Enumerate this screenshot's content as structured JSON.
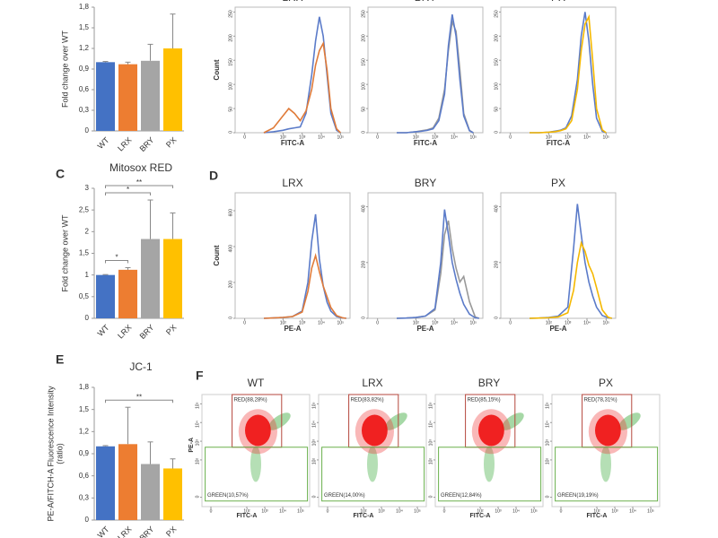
{
  "chart_data": [
    {
      "type": "bar",
      "ylabel": "Fold change over WT",
      "categories": [
        "WT",
        "LRX",
        "BRY",
        "PX"
      ],
      "values": [
        1.0,
        0.97,
        1.02,
        1.2
      ],
      "errors": [
        0.01,
        0.03,
        0.24,
        0.5
      ],
      "colors": [
        "#4472c4",
        "#ed7d31",
        "#a5a5a5",
        "#ffc000"
      ],
      "ylim": [
        0,
        1.8
      ],
      "yticks": [
        0,
        {
          "value": 0.3,
          "label": "0,3"
        },
        {
          "value": 0.6,
          "label": "0,6"
        },
        {
          "value": 0.9,
          "label": "0,9"
        },
        {
          "value": 1.2,
          "label": "1,2"
        },
        {
          "value": 1.5,
          "label": "1,5"
        },
        {
          "value": 1.8,
          "label": "1,8"
        }
      ]
    },
    {
      "type": "line",
      "title": "LRX",
      "xlabel": "FITC-A",
      "ylabel": "Count",
      "x": [
        1,
        1.5,
        2,
        2.3,
        2.6,
        2.9,
        3.2,
        3.5,
        3.7,
        3.9,
        4.1,
        4.3,
        4.5,
        4.8,
        5
      ],
      "series": [
        {
          "color": "#5b7bc9",
          "values": [
            0,
            2,
            5,
            8,
            10,
            12,
            40,
            120,
            190,
            240,
            200,
            120,
            40,
            5,
            0
          ]
        },
        {
          "color": "#e07b39",
          "values": [
            0,
            10,
            35,
            50,
            40,
            25,
            45,
            90,
            140,
            170,
            185,
            130,
            50,
            8,
            0
          ]
        }
      ],
      "xlim": [
        -0.5,
        5.5
      ],
      "xticks": [
        0,
        {
          "value": 2,
          "label": "10²"
        },
        {
          "value": 3,
          "label": "10³"
        },
        {
          "value": 4,
          "label": "10⁴"
        },
        {
          "value": 5,
          "label": "10⁵"
        }
      ],
      "ylim": [
        0,
        260
      ],
      "yticks": [
        0,
        50,
        100,
        150,
        200,
        250
      ]
    },
    {
      "type": "line",
      "title": "BRY",
      "xlabel": "FITC-A",
      "x": [
        1,
        1.5,
        2,
        2.3,
        2.6,
        2.9,
        3.2,
        3.5,
        3.7,
        3.9,
        4.1,
        4.3,
        4.5,
        4.8,
        5
      ],
      "series": [
        {
          "color": "#999999",
          "values": [
            0,
            0,
            2,
            4,
            6,
            10,
            30,
            90,
            170,
            230,
            210,
            130,
            40,
            5,
            0
          ]
        },
        {
          "color": "#5b7bc9",
          "values": [
            0,
            0,
            2,
            3,
            5,
            8,
            25,
            80,
            180,
            245,
            200,
            110,
            35,
            4,
            0
          ]
        }
      ],
      "xlim": [
        -0.5,
        5.5
      ],
      "xticks": [
        0,
        {
          "value": 2,
          "label": "10²"
        },
        {
          "value": 3,
          "label": "10³"
        },
        {
          "value": 4,
          "label": "10⁴"
        },
        {
          "value": 5,
          "label": "10⁵"
        }
      ],
      "ylim": [
        0,
        260
      ],
      "yticks": [
        0,
        50,
        100,
        150,
        200,
        250
      ]
    },
    {
      "type": "line",
      "title": "PX",
      "xlabel": "FITC-A",
      "x": [
        1,
        1.5,
        2,
        2.3,
        2.6,
        2.9,
        3.2,
        3.5,
        3.7,
        3.9,
        4.1,
        4.3,
        4.5,
        4.8,
        5
      ],
      "series": [
        {
          "color": "#5b7bc9",
          "values": [
            0,
            0,
            1,
            3,
            5,
            10,
            35,
            110,
            200,
            250,
            190,
            100,
            30,
            3,
            0
          ]
        },
        {
          "color": "#f5b800",
          "values": [
            0,
            0,
            1,
            2,
            4,
            8,
            25,
            90,
            170,
            225,
            240,
            150,
            50,
            6,
            0
          ]
        }
      ],
      "xlim": [
        -0.5,
        5.5
      ],
      "xticks": [
        0,
        {
          "value": 2,
          "label": "10²"
        },
        {
          "value": 3,
          "label": "10³"
        },
        {
          "value": 4,
          "label": "10⁴"
        },
        {
          "value": 5,
          "label": "10⁵"
        }
      ],
      "ylim": [
        0,
        260
      ],
      "yticks": [
        0,
        50,
        100,
        150,
        200,
        250
      ]
    },
    {
      "type": "bar",
      "panel": "C",
      "title": "Mitosox RED",
      "ylabel": "Fold change over WT",
      "categories": [
        "WT",
        "LRX",
        "BRY",
        "PX"
      ],
      "values": [
        1.0,
        1.12,
        1.83,
        1.83
      ],
      "errors": [
        0.01,
        0.05,
        0.9,
        0.6
      ],
      "colors": [
        "#4472c4",
        "#ed7d31",
        "#a5a5a5",
        "#ffc000"
      ],
      "ylim": [
        0,
        3
      ],
      "yticks": [
        0,
        {
          "value": 0.5,
          "label": "0,5"
        },
        1,
        {
          "value": 1.5,
          "label": "1,5"
        },
        2,
        {
          "value": 2.5,
          "label": "2,5"
        },
        3
      ],
      "significance": [
        {
          "label": "*",
          "between": [
            0,
            1
          ]
        },
        {
          "label": "*",
          "between": [
            0,
            2
          ]
        },
        {
          "label": "**",
          "between": [
            0,
            3
          ]
        }
      ]
    },
    {
      "type": "line",
      "panel": "D",
      "title": "LRX",
      "xlabel": "PE-A",
      "ylabel": "Count",
      "x": [
        1,
        1.5,
        2,
        2.5,
        3,
        3.3,
        3.5,
        3.7,
        3.9,
        4.1,
        4.3,
        4.5,
        4.8,
        5.1,
        5.3
      ],
      "series": [
        {
          "color": "#5b7bc9",
          "values": [
            0,
            2,
            5,
            10,
            40,
            200,
            430,
            580,
            330,
            180,
            90,
            40,
            10,
            2,
            0
          ]
        },
        {
          "color": "#e07b39",
          "values": [
            0,
            2,
            5,
            10,
            35,
            150,
            280,
            350,
            260,
            180,
            120,
            60,
            15,
            3,
            0
          ]
        }
      ],
      "xlim": [
        -0.5,
        5.5
      ],
      "xticks": [
        0,
        {
          "value": 2,
          "label": "10²"
        },
        {
          "value": 3,
          "label": "10³"
        },
        {
          "value": 4,
          "label": "10⁴"
        },
        {
          "value": 5,
          "label": "10⁵"
        }
      ],
      "ylim": [
        0,
        700
      ],
      "yticks": [
        0,
        200,
        400,
        600
      ]
    },
    {
      "type": "line",
      "title": "BRY",
      "xlabel": "PE-A",
      "x": [
        1,
        1.5,
        2,
        2.5,
        3,
        3.3,
        3.5,
        3.7,
        3.9,
        4.1,
        4.3,
        4.5,
        4.8,
        5.1,
        5.3
      ],
      "series": [
        {
          "color": "#999999",
          "values": [
            0,
            1,
            3,
            8,
            30,
            160,
            300,
            350,
            250,
            180,
            130,
            150,
            60,
            5,
            0
          ]
        },
        {
          "color": "#5b7bc9",
          "values": [
            0,
            1,
            3,
            8,
            35,
            200,
            390,
            300,
            200,
            140,
            90,
            50,
            15,
            2,
            0
          ]
        }
      ],
      "xlim": [
        -0.5,
        5.5
      ],
      "xticks": [
        0,
        {
          "value": 2,
          "label": "10²"
        },
        {
          "value": 3,
          "label": "10³"
        },
        {
          "value": 4,
          "label": "10⁴"
        },
        {
          "value": 5,
          "label": "10⁵"
        }
      ],
      "ylim": [
        0,
        450
      ],
      "yticks": [
        0,
        200,
        400
      ]
    },
    {
      "type": "line",
      "title": "PX",
      "xlabel": "PE-A",
      "x": [
        1,
        1.5,
        2,
        2.5,
        3,
        3.3,
        3.5,
        3.7,
        3.9,
        4.1,
        4.3,
        4.5,
        4.8,
        5.1,
        5.3
      ],
      "series": [
        {
          "color": "#5b7bc9",
          "values": [
            0,
            1,
            3,
            8,
            40,
            250,
            410,
            300,
            200,
            130,
            80,
            40,
            10,
            2,
            0
          ]
        },
        {
          "color": "#f5b800",
          "values": [
            0,
            1,
            2,
            5,
            20,
            100,
            200,
            270,
            240,
            190,
            160,
            110,
            30,
            4,
            0
          ]
        }
      ],
      "xlim": [
        -0.5,
        5.5
      ],
      "xticks": [
        0,
        {
          "value": 2,
          "label": "10²"
        },
        {
          "value": 3,
          "label": "10³"
        },
        {
          "value": 4,
          "label": "10⁴"
        },
        {
          "value": 5,
          "label": "10⁵"
        }
      ],
      "ylim": [
        0,
        450
      ],
      "yticks": [
        0,
        200,
        400
      ]
    },
    {
      "type": "bar",
      "panel": "E",
      "title": "JC-1",
      "ylabel": [
        "PE-A/FITCH-A Fluorescence Intensity",
        "(ratio)"
      ],
      "categories": [
        "WT",
        "LRX",
        "BRY",
        "PX"
      ],
      "values": [
        1.0,
        1.03,
        0.76,
        0.7
      ],
      "errors": [
        0.01,
        0.5,
        0.3,
        0.13
      ],
      "colors": [
        "#4472c4",
        "#ed7d31",
        "#a5a5a5",
        "#ffc000"
      ],
      "ylim": [
        0,
        1.8
      ],
      "yticks": [
        0,
        {
          "value": 0.3,
          "label": "0,3"
        },
        {
          "value": 0.6,
          "label": "0,6"
        },
        {
          "value": 0.9,
          "label": "0,9"
        },
        {
          "value": 1.2,
          "label": "1,2"
        },
        {
          "value": 1.5,
          "label": "1,5"
        },
        {
          "value": 1.8,
          "label": "1,8"
        }
      ],
      "significance": [
        {
          "label": "**",
          "between": [
            0,
            3
          ]
        }
      ]
    },
    {
      "type": "scatter",
      "panel": "F",
      "title": "WT",
      "xlabel": "FITC-A",
      "ylabel": "PE-A",
      "gates": [
        {
          "label": "RED(88,28%)",
          "color": "#b5463c"
        },
        {
          "label": "GREEN(10,57%)",
          "color": "#6ab04c"
        }
      ],
      "xlim": [
        -0.5,
        5.5
      ],
      "xticks": [
        0,
        {
          "value": 2,
          "label": "10²"
        },
        {
          "value": 3,
          "label": "10³"
        },
        {
          "value": 4,
          "label": "10⁴"
        },
        {
          "value": 5,
          "label": "10⁵"
        }
      ],
      "ylim": [
        -0.5,
        5.5
      ],
      "yticks": [
        0,
        {
          "value": 2,
          "label": "10²"
        },
        {
          "value": 3,
          "label": "10³"
        },
        {
          "value": 4,
          "label": "10⁴"
        },
        {
          "value": 5,
          "label": "10⁵"
        }
      ]
    },
    {
      "type": "scatter",
      "title": "LRX",
      "xlabel": "FITC-A",
      "gates": [
        {
          "label": "RED(83,82%)",
          "color": "#b5463c"
        },
        {
          "label": "GREEN(14,00%)",
          "color": "#6ab04c"
        }
      ],
      "xlim": [
        -0.5,
        5.5
      ],
      "xticks": [
        0,
        {
          "value": 2,
          "label": "10²"
        },
        {
          "value": 3,
          "label": "10³"
        },
        {
          "value": 4,
          "label": "10⁴"
        },
        {
          "value": 5,
          "label": "10⁵"
        }
      ],
      "ylim": [
        -0.5,
        5.5
      ],
      "yticks": [
        0,
        {
          "value": 2,
          "label": "10²"
        },
        {
          "value": 3,
          "label": "10³"
        },
        {
          "value": 4,
          "label": "10⁴"
        },
        {
          "value": 5,
          "label": "10⁵"
        }
      ]
    },
    {
      "type": "scatter",
      "title": "BRY",
      "xlabel": "FITC-A",
      "gates": [
        {
          "label": "RED(85,15%)",
          "color": "#b5463c"
        },
        {
          "label": "GREEN(12,84%)",
          "color": "#6ab04c"
        }
      ],
      "xlim": [
        -0.5,
        5.5
      ],
      "xticks": [
        0,
        {
          "value": 2,
          "label": "10²"
        },
        {
          "value": 3,
          "label": "10³"
        },
        {
          "value": 4,
          "label": "10⁴"
        },
        {
          "value": 5,
          "label": "10⁵"
        }
      ],
      "ylim": [
        -0.5,
        5.5
      ],
      "yticks": [
        0,
        {
          "value": 2,
          "label": "10²"
        },
        {
          "value": 3,
          "label": "10³"
        },
        {
          "value": 4,
          "label": "10⁴"
        },
        {
          "value": 5,
          "label": "10⁵"
        }
      ]
    },
    {
      "type": "scatter",
      "title": "PX",
      "xlabel": "FITC-A",
      "gates": [
        {
          "label": "RED(78,31%)",
          "color": "#b5463c"
        },
        {
          "label": "GREEN(19,19%)",
          "color": "#6ab04c"
        }
      ],
      "xlim": [
        -0.5,
        5.5
      ],
      "xticks": [
        0,
        {
          "value": 2,
          "label": "10²"
        },
        {
          "value": 3,
          "label": "10³"
        },
        {
          "value": 4,
          "label": "10⁴"
        },
        {
          "value": 5,
          "label": "10⁵"
        }
      ],
      "ylim": [
        -0.5,
        5.5
      ],
      "yticks": [
        0,
        {
          "value": 2,
          "label": "10²"
        },
        {
          "value": 3,
          "label": "10³"
        },
        {
          "value": 4,
          "label": "10⁴"
        },
        {
          "value": 5,
          "label": "10⁵"
        }
      ]
    }
  ]
}
